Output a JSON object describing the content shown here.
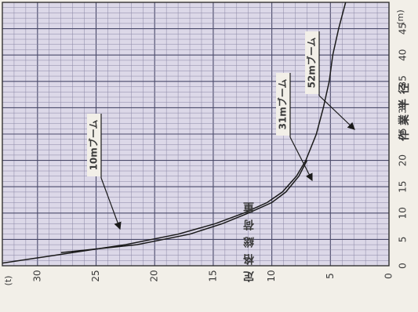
{
  "chart_data": {
    "type": "line",
    "x_axis": {
      "label": "定格総荷重",
      "unit": "(t)",
      "ticks": [
        0,
        5,
        10,
        15,
        20,
        25,
        30,
        35,
        40,
        45
      ],
      "range": [
        0,
        50
      ]
    },
    "y_axis": {
      "label": "作業半径",
      "unit": "(m)",
      "ticks": [
        0,
        5,
        10,
        15,
        20,
        25,
        30
      ],
      "range": [
        0,
        33
      ]
    },
    "grid": true,
    "series": [
      {
        "name": "10mブーム",
        "x": [
          50,
          45,
          40,
          35,
          30,
          25,
          20
        ],
        "y": [
          3.7,
          4.3,
          4.8,
          5.1,
          5.6,
          6.2,
          7.1
        ]
      },
      {
        "name": "31mブーム",
        "x": [
          20,
          17,
          14,
          12,
          10,
          8,
          6,
          4,
          2.5
        ],
        "y": [
          7.0,
          7.7,
          8.8,
          10.0,
          12.0,
          14.2,
          17.0,
          21.5,
          28.0
        ]
      },
      {
        "name": "52mブーム",
        "x": [
          20,
          17,
          14,
          12,
          10,
          8,
          6,
          4,
          2,
          0.5
        ],
        "y": [
          7.1,
          7.9,
          9.1,
          10.4,
          12.4,
          14.8,
          18.0,
          22.5,
          28.5,
          33.0
        ]
      }
    ],
    "annotations": [
      "10mブーム",
      "31mブーム",
      "52mブーム"
    ]
  }
}
